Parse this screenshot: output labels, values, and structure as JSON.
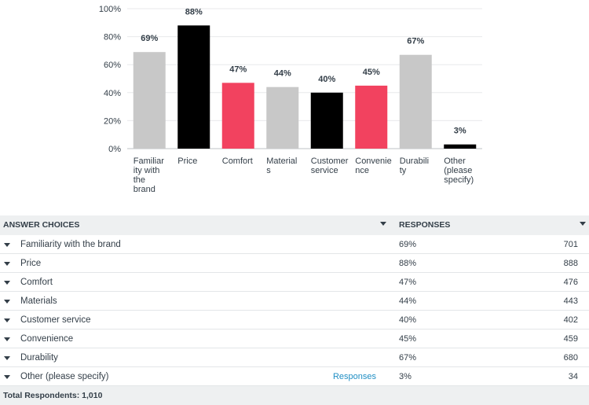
{
  "chart_data": {
    "type": "bar",
    "categories": [
      [
        "Familiar",
        "ity with",
        "the",
        "brand"
      ],
      [
        "Price"
      ],
      [
        "Comfort"
      ],
      [
        "Material",
        "s"
      ],
      [
        "Customer",
        "service"
      ],
      [
        "Convenie",
        "nce"
      ],
      [
        "Durabili",
        "ty"
      ],
      [
        "Other",
        "(please",
        "specify)"
      ]
    ],
    "values": [
      69,
      88,
      47,
      44,
      40,
      45,
      67,
      3
    ],
    "value_labels": [
      "69%",
      "88%",
      "47%",
      "44%",
      "40%",
      "45%",
      "67%",
      "3%"
    ],
    "colors": [
      "#c8c8c8",
      "#000000",
      "#f2425f",
      "#c8c8c8",
      "#000000",
      "#f2425f",
      "#c8c8c8",
      "#000000"
    ],
    "ylim": [
      0,
      100
    ],
    "yticks": [
      "0%",
      "20%",
      "40%",
      "60%",
      "80%",
      "100%"
    ],
    "grid": true
  },
  "table": {
    "header": {
      "choices": "ANSWER CHOICES",
      "responses": "RESPONSES"
    },
    "rows": [
      {
        "label": "Familiarity with the brand",
        "pct": "69%",
        "count": "701"
      },
      {
        "label": "Price",
        "pct": "88%",
        "count": "888"
      },
      {
        "label": "Comfort",
        "pct": "47%",
        "count": "476"
      },
      {
        "label": "Materials",
        "pct": "44%",
        "count": "443"
      },
      {
        "label": "Customer service",
        "pct": "40%",
        "count": "402"
      },
      {
        "label": "Convenience",
        "pct": "45%",
        "count": "459"
      },
      {
        "label": "Durability",
        "pct": "67%",
        "count": "680"
      },
      {
        "label": "Other (please specify)",
        "pct": "3%",
        "count": "34",
        "link": "Responses"
      }
    ],
    "footer": "Total Respondents: 1,010"
  }
}
